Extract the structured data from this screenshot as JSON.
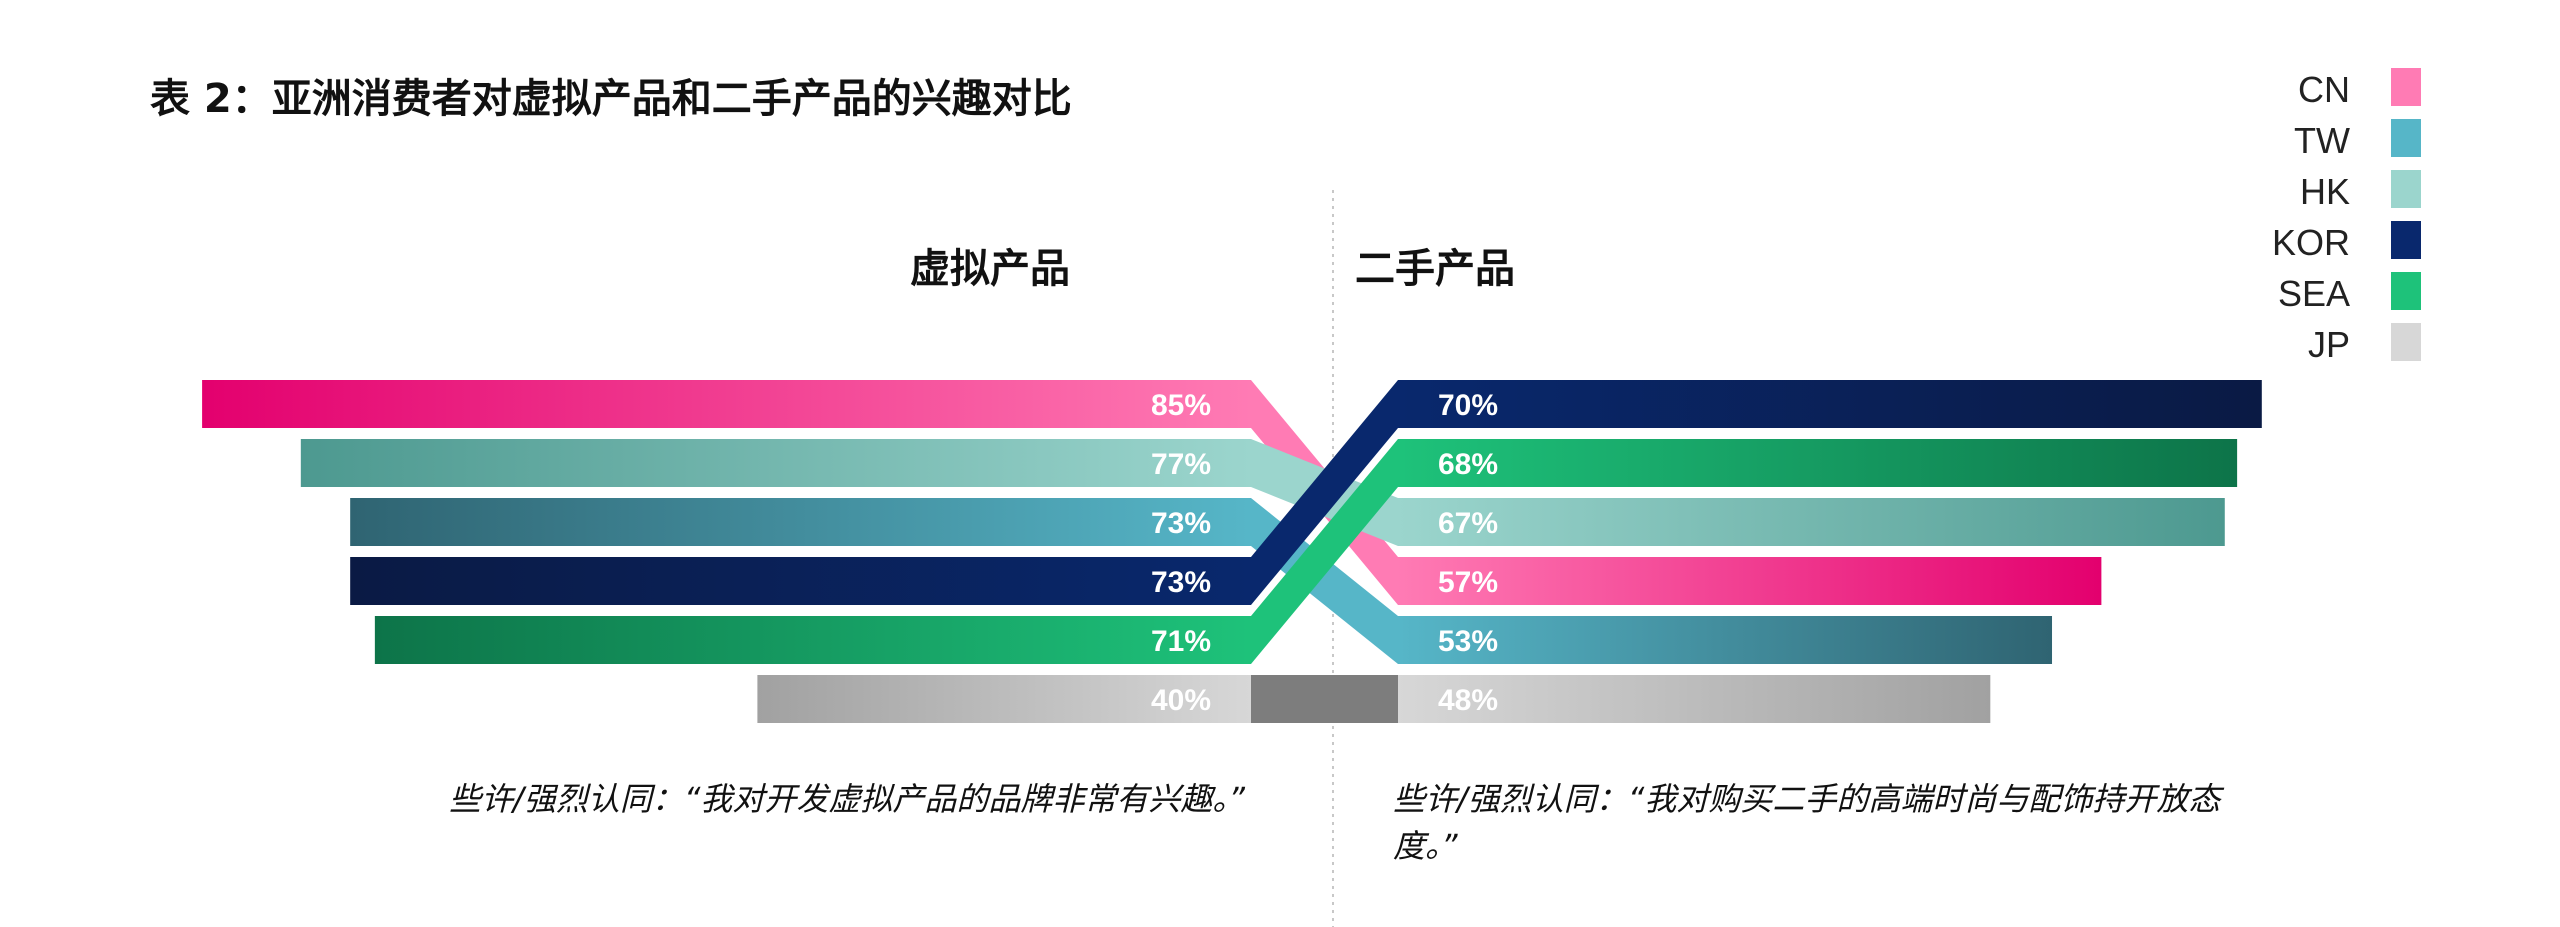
{
  "title": "表 2：亚洲消费者对虚拟产品和二手产品的兴趣对比",
  "colors": {
    "CN": [
      "#e3006e",
      "#ff7bb4"
    ],
    "TW": [
      "#2f6472",
      "#56b6c8"
    ],
    "HK": [
      "#4d9990",
      "#9bd5cd"
    ],
    "KOR": [
      "#0a1a44",
      "#09286d"
    ],
    "SEA": [
      "#0d7449",
      "#1ec27a"
    ],
    "JP": [
      "#a1a1a1",
      "#d7d7d7"
    ]
  },
  "legend": [
    {
      "key": "CN",
      "label": "CN"
    },
    {
      "key": "TW",
      "label": "TW"
    },
    {
      "key": "HK",
      "label": "HK"
    },
    {
      "key": "KOR",
      "label": "KOR"
    },
    {
      "key": "SEA",
      "label": "SEA"
    },
    {
      "key": "JP",
      "label": "JP"
    }
  ],
  "chart_data": {
    "type": "bar",
    "panels": [
      {
        "title": "虚拟产品",
        "caption": "些许/强烈认同：“我对开发虚拟产品的品牌非常有兴趣。”",
        "bars": [
          {
            "region": "CN",
            "value": 85,
            "label": "85%"
          },
          {
            "region": "HK",
            "value": 77,
            "label": "77%"
          },
          {
            "region": "TW",
            "value": 73,
            "label": "73%"
          },
          {
            "region": "KOR",
            "value": 73,
            "label": "73%"
          },
          {
            "region": "SEA",
            "value": 71,
            "label": "71%"
          },
          {
            "region": "JP",
            "value": 40,
            "label": "40%"
          }
        ]
      },
      {
        "title": "二手产品",
        "caption_lines": [
          "些许/强烈认同：“我对购买二手的高端时尚与配饰持开放态",
          "度。”"
        ],
        "bars": [
          {
            "region": "KOR",
            "value": 70,
            "label": "70%"
          },
          {
            "region": "SEA",
            "value": 68,
            "label": "68%"
          },
          {
            "region": "HK",
            "value": 67,
            "label": "67%"
          },
          {
            "region": "CN",
            "value": 57,
            "label": "57%"
          },
          {
            "region": "TW",
            "value": 53,
            "label": "53%"
          },
          {
            "region": "JP",
            "value": 48,
            "label": "48%"
          }
        ]
      }
    ]
  }
}
